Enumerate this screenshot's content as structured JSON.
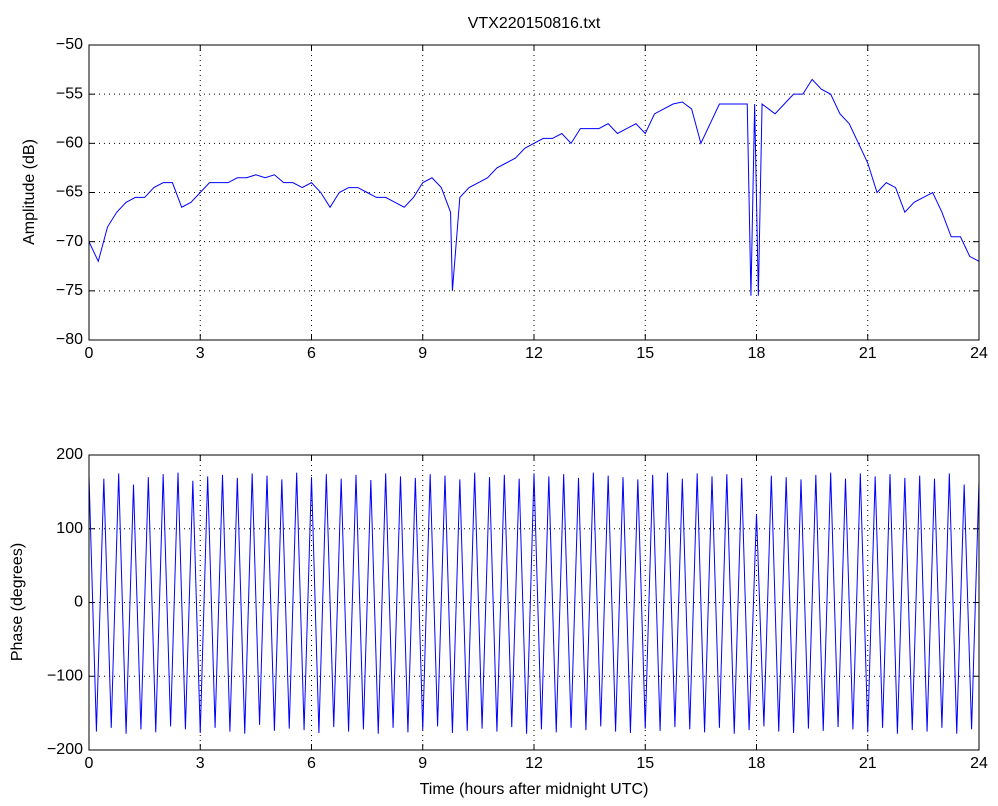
{
  "chart_data": [
    {
      "type": "line",
      "title": "VTX220150816.txt",
      "ylabel": "Amplitude (dB)",
      "xlim": [
        0,
        24
      ],
      "xticks": [
        0,
        3,
        6,
        9,
        12,
        15,
        18,
        21,
        24
      ],
      "ylim": [
        -80,
        -50
      ],
      "yticks": [
        {
          "value": -80,
          "label": "−80"
        },
        {
          "value": -75,
          "label": "−75"
        },
        {
          "value": -70,
          "label": "−70"
        },
        {
          "value": -65,
          "label": "−65"
        },
        {
          "value": -60,
          "label": "−60"
        },
        {
          "value": -55,
          "label": "−55"
        },
        {
          "value": -50,
          "label": "−50"
        }
      ],
      "grid": true,
      "x": [
        0,
        0.25,
        0.5,
        0.75,
        1,
        1.25,
        1.5,
        1.75,
        2,
        2.25,
        2.5,
        2.75,
        3,
        3.25,
        3.5,
        3.75,
        4,
        4.25,
        4.5,
        4.75,
        5,
        5.25,
        5.5,
        5.75,
        6,
        6.25,
        6.5,
        6.75,
        7,
        7.25,
        7.5,
        7.75,
        8,
        8.25,
        8.5,
        8.75,
        9,
        9.25,
        9.5,
        9.75,
        9.8,
        10,
        10.25,
        10.5,
        10.75,
        11,
        11.25,
        11.5,
        11.75,
        12,
        12.25,
        12.5,
        12.75,
        13,
        13.25,
        13.5,
        13.75,
        14,
        14.25,
        14.5,
        14.75,
        15,
        15.25,
        15.5,
        15.75,
        16,
        16.25,
        16.5,
        16.75,
        17,
        17.25,
        17.5,
        17.75,
        17.85,
        17.95,
        18.05,
        18.15,
        18.5,
        18.75,
        19,
        19.25,
        19.5,
        19.75,
        20,
        20.25,
        20.5,
        20.75,
        21,
        21.25,
        21.5,
        21.75,
        22,
        22.25,
        22.5,
        22.75,
        23,
        23.25,
        23.5,
        23.75,
        24
      ],
      "series": [
        {
          "name": "Amplitude",
          "color": "#0000ff",
          "values": [
            -70,
            -72,
            -68.5,
            -67,
            -66,
            -65.5,
            -65.5,
            -64.5,
            -64,
            -64,
            -66.5,
            -66,
            -65,
            -64,
            -64,
            -64,
            -63.5,
            -63.5,
            -63.2,
            -63.5,
            -63.2,
            -64,
            -64,
            -64.5,
            -64,
            -65,
            -66.5,
            -65,
            -64.5,
            -64.5,
            -65,
            -65.5,
            -65.5,
            -66,
            -66.5,
            -65.5,
            -64,
            -63.5,
            -64.5,
            -67,
            -75,
            -65.5,
            -64.5,
            -64,
            -63.5,
            -62.5,
            -62,
            -61.5,
            -60.5,
            -60,
            -59.5,
            -59.5,
            -59,
            -60,
            -58.5,
            -58.5,
            -58.5,
            -58,
            -59,
            -58.5,
            -58,
            -59,
            -57,
            -56.5,
            -56,
            -55.8,
            -56.5,
            -60,
            -58,
            -56,
            -56,
            -56,
            -56,
            -75.5,
            -56,
            -75.5,
            -56,
            -57,
            -56,
            -55,
            -55,
            -53.5,
            -54.5,
            -55,
            -57,
            -58,
            -60,
            -62,
            -65,
            -64,
            -64.5,
            -67,
            -66,
            -65.5,
            -65,
            -67,
            -69.5,
            -69.5,
            -71.5,
            -72
          ]
        }
      ]
    },
    {
      "type": "line",
      "ylabel": "Phase (degrees)",
      "xlabel": "Time (hours after midnight UTC)",
      "xlim": [
        0,
        24
      ],
      "xticks": [
        0,
        3,
        6,
        9,
        12,
        15,
        18,
        21,
        24
      ],
      "ylim": [
        -200,
        200
      ],
      "yticks": [
        {
          "value": -200,
          "label": "−200"
        },
        {
          "value": -100,
          "label": "−100"
        },
        0,
        100,
        200
      ],
      "grid": true,
      "x": [
        0,
        0.2,
        0.4,
        0.6,
        0.8,
        1,
        1.2,
        1.4,
        1.6,
        1.8,
        2,
        2.2,
        2.4,
        2.6,
        2.8,
        3,
        3.2,
        3.4,
        3.6,
        3.8,
        4,
        4.2,
        4.4,
        4.6,
        4.8,
        5,
        5.2,
        5.4,
        5.6,
        5.8,
        6,
        6.2,
        6.4,
        6.6,
        6.8,
        7,
        7.2,
        7.4,
        7.6,
        7.8,
        8,
        8.2,
        8.4,
        8.6,
        8.8,
        9,
        9.2,
        9.4,
        9.6,
        9.8,
        10,
        10.2,
        10.4,
        10.6,
        10.8,
        11,
        11.2,
        11.4,
        11.6,
        11.8,
        12,
        12.2,
        12.4,
        12.6,
        12.8,
        13,
        13.2,
        13.4,
        13.6,
        13.8,
        14,
        14.2,
        14.4,
        14.6,
        14.8,
        15,
        15.2,
        15.4,
        15.6,
        15.8,
        16,
        16.2,
        16.4,
        16.6,
        16.8,
        17,
        17.2,
        17.4,
        17.6,
        17.8,
        18,
        18.2,
        18.4,
        18.6,
        18.8,
        19,
        19.2,
        19.4,
        19.6,
        19.8,
        20,
        20.2,
        20.4,
        20.6,
        20.8,
        21,
        21.2,
        21.4,
        21.6,
        21.8,
        22,
        22.2,
        22.4,
        22.6,
        22.8,
        23,
        23.2,
        23.4,
        23.6,
        23.8,
        24
      ],
      "series": [
        {
          "name": "Phase",
          "color": "#0000ff",
          "values": [
            172,
            -175,
            168,
            -170,
            175,
            -178,
            160,
            -172,
            170,
            -176,
            174,
            -168,
            176,
            -172,
            165,
            -177,
            171,
            -170,
            173,
            -175,
            169,
            -178,
            175,
            -166,
            172,
            -174,
            167,
            -171,
            176,
            -173,
            170,
            -177,
            174,
            -169,
            168,
            -175,
            173,
            -172,
            166,
            -178,
            175,
            -170,
            171,
            -176,
            169,
            -173,
            174,
            -168,
            172,
            -177,
            167,
            -174,
            176,
            -171,
            170,
            -175,
            173,
            -169,
            168,
            -178,
            175,
            -172,
            171,
            -176,
            174,
            -170,
            169,
            -173,
            176,
            -168,
            172,
            -175,
            170,
            -177,
            167,
            -171,
            173,
            -174,
            176,
            -169,
            168,
            -172,
            175,
            -176,
            171,
            -170,
            174,
            -178,
            169,
            -173,
            120,
            -168,
            172,
            -175,
            170,
            -177,
            167,
            -171,
            173,
            -174,
            176,
            -169,
            168,
            -172,
            175,
            -176,
            171,
            -170,
            174,
            -178,
            169,
            -173,
            172,
            -175,
            168,
            -170,
            175,
            -178,
            160,
            -172,
            165
          ]
        }
      ]
    }
  ]
}
